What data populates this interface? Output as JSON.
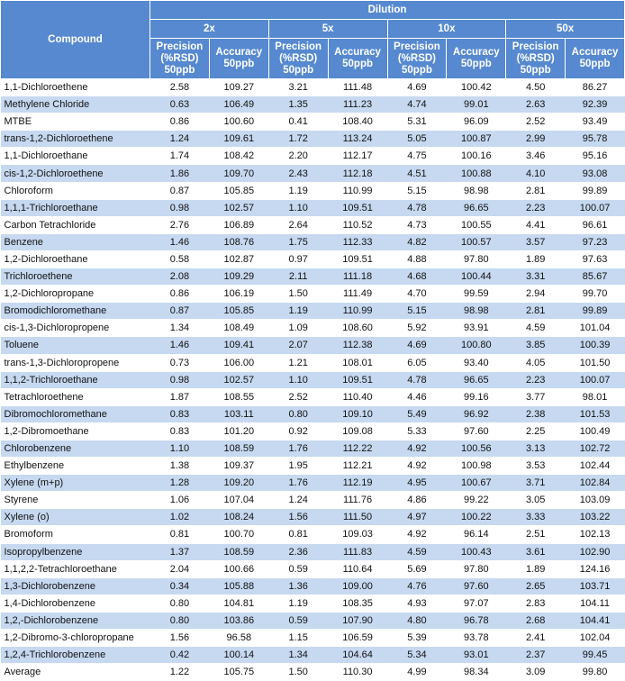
{
  "header": {
    "compound": "Compound",
    "dilution": "Dilution",
    "dilutions": [
      "2x",
      "5x",
      "10x",
      "50x"
    ],
    "precision": [
      "Precision",
      "(%RSD)",
      "50ppb"
    ],
    "accuracy": [
      "Accuracy",
      "50ppb"
    ]
  },
  "colors": {
    "header_bg": "#5689cf",
    "alt_row": "#c6d9f0"
  },
  "rows": [
    [
      "1,1-Dichloroethene",
      "2.58",
      "109.27",
      "3.21",
      "111.48",
      "4.69",
      "100.42",
      "4.50",
      "86.27"
    ],
    [
      "Methylene Chloride",
      "0.63",
      "106.49",
      "1.35",
      "111.23",
      "4.74",
      "99.01",
      "2.63",
      "92.39"
    ],
    [
      "MTBE",
      "0.86",
      "100.60",
      "0.41",
      "108.40",
      "5.31",
      "96.09",
      "2.52",
      "93.49"
    ],
    [
      "trans-1,2-Dichloroethene",
      "1.24",
      "109.61",
      "1.72",
      "113.24",
      "5.05",
      "100.87",
      "2.99",
      "95.78"
    ],
    [
      "1,1-Dichloroethane",
      "1.74",
      "108.42",
      "2.20",
      "112.17",
      "4.75",
      "100.16",
      "3.46",
      "95.16"
    ],
    [
      "cis-1,2-Dichloroethene",
      "1.86",
      "109.70",
      "2.43",
      "112.18",
      "4.51",
      "100.88",
      "4.10",
      "93.08"
    ],
    [
      "Chloroform",
      "0.87",
      "105.85",
      "1.19",
      "110.99",
      "5.15",
      "98.98",
      "2.81",
      "99.89"
    ],
    [
      "1,1,1-Trichloroethane",
      "0.98",
      "102.57",
      "1.10",
      "109.51",
      "4.78",
      "96.65",
      "2.23",
      "100.07"
    ],
    [
      "Carbon Tetrachloride",
      "2.76",
      "106.89",
      "2.64",
      "110.52",
      "4.73",
      "100.55",
      "4.41",
      "96.61"
    ],
    [
      "Benzene",
      "1.46",
      "108.76",
      "1.75",
      "112.33",
      "4.82",
      "100.57",
      "3.57",
      "97.23"
    ],
    [
      "1,2-Dichloroethane",
      "0.58",
      "102.87",
      "0.97",
      "109.51",
      "4.88",
      "97.80",
      "1.89",
      "97.63"
    ],
    [
      "Trichloroethene",
      "2.08",
      "109.29",
      "2.11",
      "111.18",
      "4.68",
      "100.44",
      "3.31",
      "85.67"
    ],
    [
      "1,2-Dichloropropane",
      "0.86",
      "106.19",
      "1.50",
      "111.49",
      "4.70",
      "99.59",
      "2.94",
      "99.70"
    ],
    [
      "Bromodichloromethane",
      "0.87",
      "105.85",
      "1.19",
      "110.99",
      "5.15",
      "98.98",
      "2.81",
      "99.89"
    ],
    [
      "cis-1,3-Dichloropropene",
      "1.34",
      "108.49",
      "1.09",
      "108.60",
      "5.92",
      "93.91",
      "4.59",
      "101.04"
    ],
    [
      "Toluene",
      "1.46",
      "109.41",
      "2.07",
      "112.38",
      "4.69",
      "100.80",
      "3.85",
      "100.39"
    ],
    [
      "trans-1,3-Dichloropropene",
      "0.73",
      "106.00",
      "1.21",
      "108.01",
      "6.05",
      "93.40",
      "4.05",
      "101.50"
    ],
    [
      "1,1,2-Trichloroethane",
      "0.98",
      "102.57",
      "1.10",
      "109.51",
      "4.78",
      "96.65",
      "2.23",
      "100.07"
    ],
    [
      "Tetrachloroethene",
      "1.87",
      "108.55",
      "2.52",
      "110.40",
      "4.46",
      "99.16",
      "3.77",
      "98.01"
    ],
    [
      "Dibromochloromethane",
      "0.83",
      "103.11",
      "0.80",
      "109.10",
      "5.49",
      "96.92",
      "2.38",
      "101.53"
    ],
    [
      "1,2-Dibromoethane",
      "0.83",
      "101.20",
      "0.92",
      "109.08",
      "5.33",
      "97.60",
      "2.25",
      "100.49"
    ],
    [
      "Chlorobenzene",
      "1.10",
      "108.59",
      "1.76",
      "112.22",
      "4.92",
      "100.56",
      "3.13",
      "102.72"
    ],
    [
      "Ethylbenzene",
      "1.38",
      "109.37",
      "1.95",
      "112.21",
      "4.92",
      "100.98",
      "3.53",
      "102.44"
    ],
    [
      "Xylene (m+p)",
      "1.28",
      "109.20",
      "1.76",
      "112.19",
      "4.95",
      "100.67",
      "3.71",
      "102.84"
    ],
    [
      "Styrene",
      "1.06",
      "107.04",
      "1.24",
      "111.76",
      "4.86",
      "99.22",
      "3.05",
      "103.09"
    ],
    [
      "Xylene (o)",
      "1.02",
      "108.24",
      "1.56",
      "111.50",
      "4.97",
      "100.22",
      "3.33",
      "103.22"
    ],
    [
      "Bromoform",
      "0.81",
      "100.70",
      "0.81",
      "109.03",
      "4.92",
      "96.14",
      "2.51",
      "102.13"
    ],
    [
      "Isopropylbenzene",
      "1.37",
      "108.59",
      "2.36",
      "111.83",
      "4.59",
      "100.43",
      "3.61",
      "102.90"
    ],
    [
      "1,1,2,2-Tetrachloroethane",
      "2.04",
      "100.66",
      "0.59",
      "110.64",
      "5.69",
      "97.80",
      "1.89",
      "124.16"
    ],
    [
      "1,3-Dichlorobenzene",
      "0.34",
      "105.88",
      "1.36",
      "109.00",
      "4.76",
      "97.60",
      "2.65",
      "103.71"
    ],
    [
      "1,4-Dichlorobenzene",
      "0.80",
      "104.81",
      "1.19",
      "108.35",
      "4.93",
      "97.07",
      "2.83",
      "104.11"
    ],
    [
      "1,2,-Dichlorobenzene",
      "0.80",
      "103.86",
      "0.59",
      "107.90",
      "4.80",
      "96.78",
      "2.68",
      "104.41"
    ],
    [
      "1,2-Dibromo-3-chloropropane",
      "1.56",
      "96.58",
      "1.15",
      "106.59",
      "5.39",
      "93.78",
      "2.41",
      "102.04"
    ],
    [
      "1,2,4-Trichlorobenzene",
      "0.42",
      "100.14",
      "1.34",
      "104.64",
      "5.34",
      "93.01",
      "2.37",
      "99.45"
    ],
    [
      "Average",
      "1.22",
      "105.75",
      "1.50",
      "110.30",
      "4.99",
      "98.34",
      "3.09",
      "99.80"
    ]
  ]
}
